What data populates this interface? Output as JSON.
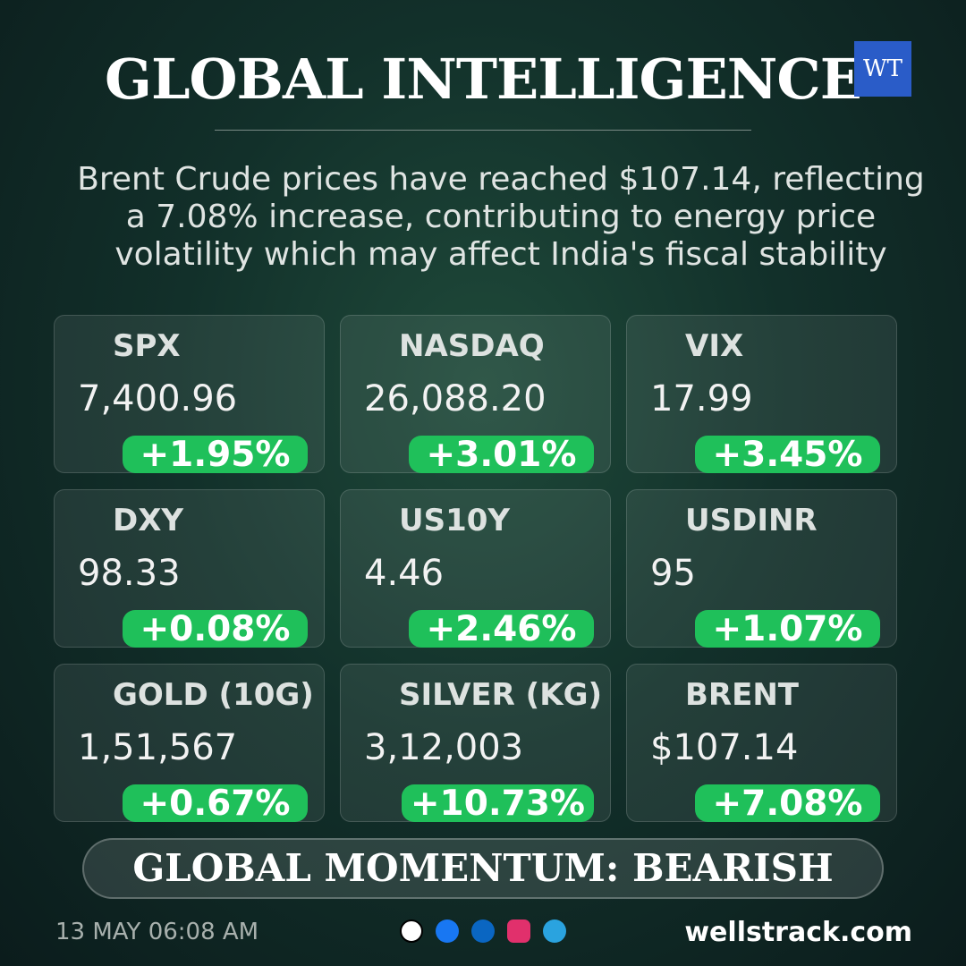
{
  "header": {
    "title": "GLOBAL INTELLIGENCE",
    "logo": "WT"
  },
  "summary": {
    "lines": [
      "Brent Crude prices have reached $107.14, reflecting",
      "a 7.08% increase, contributing to energy price",
      "volatility which may affect India's fiscal stability"
    ]
  },
  "cards": [
    {
      "label": "SPX",
      "value": "7,400.96",
      "change": "+1.95%"
    },
    {
      "label": "NASDAQ",
      "value": "26,088.20",
      "change": "+3.01%"
    },
    {
      "label": "VIX",
      "value": "17.99",
      "change": "+3.45%"
    },
    {
      "label": "DXY",
      "value": "98.33",
      "change": "+0.08%"
    },
    {
      "label": "US10Y",
      "value": "4.46",
      "change": "+2.46%"
    },
    {
      "label": "USDINR",
      "value": "95",
      "change": "+1.07%"
    },
    {
      "label": "GOLD (10G)",
      "value": "1,51,567",
      "change": "+0.67%"
    },
    {
      "label": "SILVER (KG)",
      "value": "3,12,003",
      "change": "+10.73%"
    },
    {
      "label": "BRENT",
      "value": "$107.14",
      "change": "+7.08%"
    }
  ],
  "momentum": "GLOBAL MOMENTUM: BEARISH",
  "footer": {
    "timestamp": "13 MAY 06:08 AM",
    "website": "wellstrack.com"
  }
}
